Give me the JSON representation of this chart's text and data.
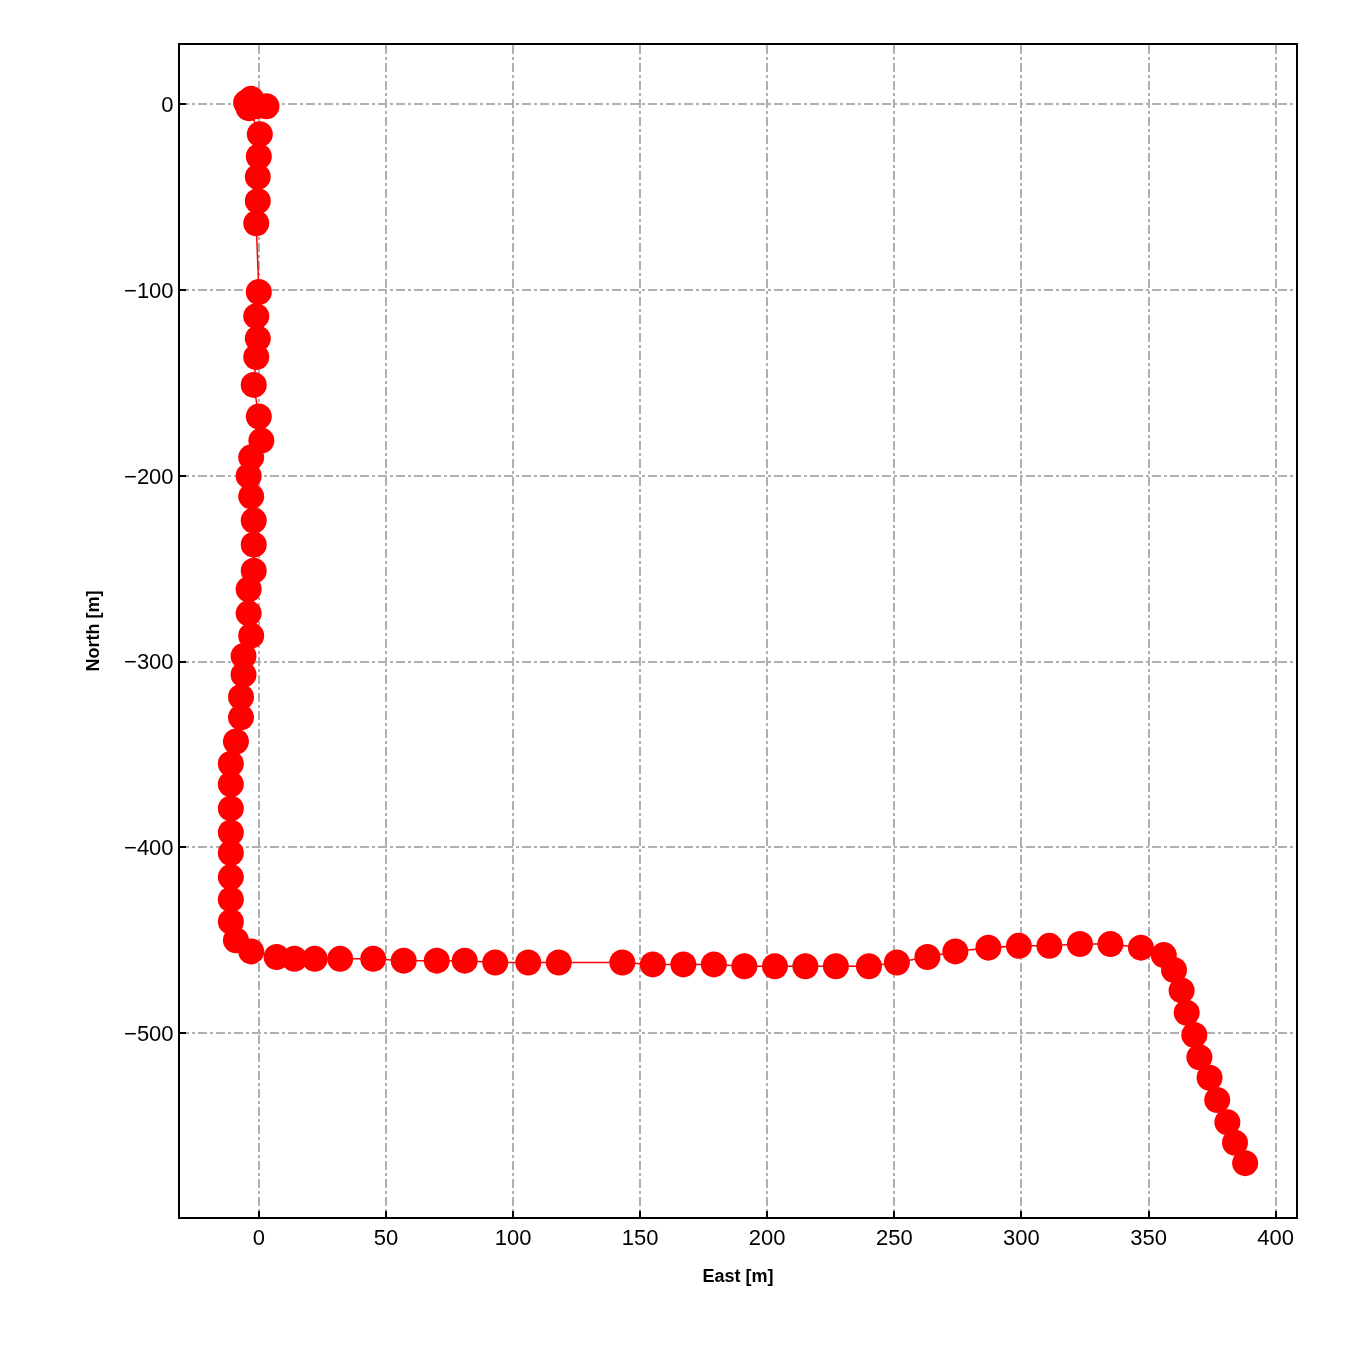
{
  "chart_data": {
    "type": "line",
    "xlabel": "East [m]",
    "ylabel": "North [m]",
    "marker": "circle",
    "line_style": "solid",
    "grid": true,
    "xlim": [
      -31,
      408
    ],
    "ylim": [
      -599,
      32
    ],
    "xticks": [
      0,
      50,
      100,
      150,
      200,
      250,
      300,
      350,
      400
    ],
    "yticks": [
      0,
      -100,
      -200,
      -300,
      -400,
      -500
    ],
    "series": [
      {
        "color": "#ff0000",
        "x": [
          -5,
          -3,
          -1,
          3,
          -4,
          0.4,
          0,
          -0.4,
          -0.4,
          -1,
          0,
          -1,
          -0.4,
          -1,
          -2,
          0,
          1,
          -3,
          -4,
          -3,
          -2,
          -2,
          -2,
          -4,
          -4,
          -3,
          -6,
          -6,
          -7,
          -7,
          -9,
          -11,
          -11,
          -11,
          -11,
          -11,
          -11,
          -11,
          -11,
          -9,
          -3,
          7,
          14,
          22,
          32,
          45,
          57,
          70,
          81,
          93,
          106,
          118,
          143,
          155,
          167,
          179,
          191,
          203,
          215,
          227,
          240,
          251,
          263,
          274,
          287,
          299,
          311,
          323,
          335,
          347,
          356,
          360,
          363,
          365,
          368,
          370,
          374,
          377,
          381,
          384,
          388
        ],
        "values": [
          1,
          3,
          -1,
          -1,
          -2,
          -16,
          -28,
          -39,
          -52,
          -64,
          -101,
          -114,
          -126,
          -136,
          -151,
          -168,
          -181,
          -190,
          -200,
          -211,
          -224,
          -237,
          -251,
          -261,
          -274,
          -286,
          -297,
          -307,
          -319,
          -330,
          -343,
          -355,
          -366,
          -379,
          -392,
          -403,
          -416,
          -428,
          -440,
          -450,
          -456,
          -459,
          -460,
          -460,
          -460,
          -460,
          -461,
          -461,
          -461,
          -462,
          -462,
          -462,
          -462,
          -463,
          -463,
          -463,
          -464,
          -464,
          -464,
          -464,
          -464,
          -462,
          -459,
          -456,
          -454,
          -453,
          -453,
          -452,
          -452,
          -454,
          -458,
          -466,
          -477,
          -489,
          -501,
          -513,
          -524,
          -536,
          -548,
          -559,
          -570
        ]
      }
    ]
  }
}
